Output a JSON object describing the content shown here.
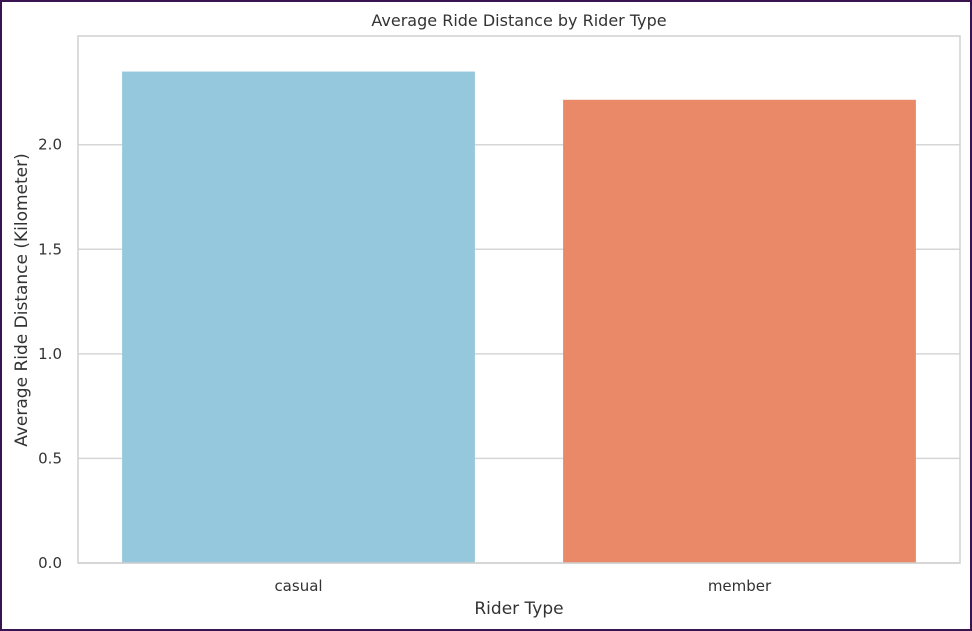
{
  "chart_data": {
    "type": "bar",
    "title": "Average Ride Distance by Rider Type",
    "xlabel": "Rider Type",
    "ylabel": "Average Ride Distance (Kilometer)",
    "categories": [
      "casual",
      "member"
    ],
    "values": [
      2.35,
      2.215
    ],
    "colors": [
      "#96c8dd",
      "#e98967"
    ],
    "ylim": [
      0,
      2.52
    ],
    "yticks": [
      0.0,
      0.5,
      1.0,
      1.5,
      2.0
    ],
    "ytick_labels": [
      "0.0",
      "0.5",
      "1.0",
      "1.5",
      "2.0"
    ],
    "grid": true,
    "grid_color": "#d6d6d6",
    "axes_edge_color": "#d0d0d0"
  }
}
